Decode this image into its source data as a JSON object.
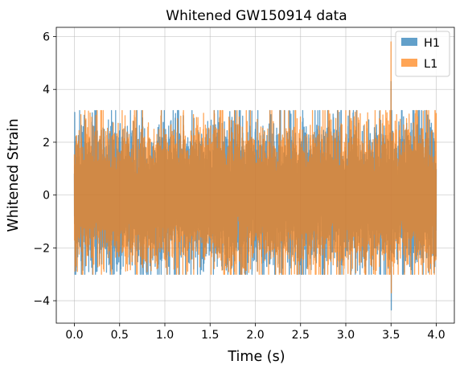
{
  "chart_data": {
    "type": "line",
    "title": "Whitened GW150914 data",
    "xlabel": "Time (s)",
    "ylabel": "Whitened Strain",
    "xlim": [
      -0.2,
      4.2
    ],
    "ylim": [
      -4.85,
      6.35
    ],
    "xticks": [
      0.0,
      0.5,
      1.0,
      1.5,
      2.0,
      2.5,
      3.0,
      3.5,
      4.0
    ],
    "xtick_labels": [
      "0.0",
      "0.5",
      "1.0",
      "1.5",
      "2.0",
      "2.5",
      "3.0",
      "3.5",
      "4.0"
    ],
    "yticks": [
      -4,
      -2,
      0,
      2,
      4,
      6
    ],
    "ytick_labels": [
      "−4",
      "−2",
      "0",
      "2",
      "4",
      "6"
    ],
    "grid": true,
    "legend_position": "top-right",
    "series": [
      {
        "name": "H1",
        "color": "#1f77b4",
        "alpha": 0.7,
        "x_range": [
          0.0,
          4.0
        ],
        "typical_range": [
          -2.2,
          2.2
        ],
        "max": 4.3,
        "min": -4.35,
        "event_time": 3.5
      },
      {
        "name": "L1",
        "color": "#ff7f0e",
        "alpha": 0.7,
        "x_range": [
          0.0,
          4.0
        ],
        "typical_range": [
          -2.2,
          2.2
        ],
        "max": 5.8,
        "min": -3.7,
        "event_time": 3.5
      }
    ]
  }
}
